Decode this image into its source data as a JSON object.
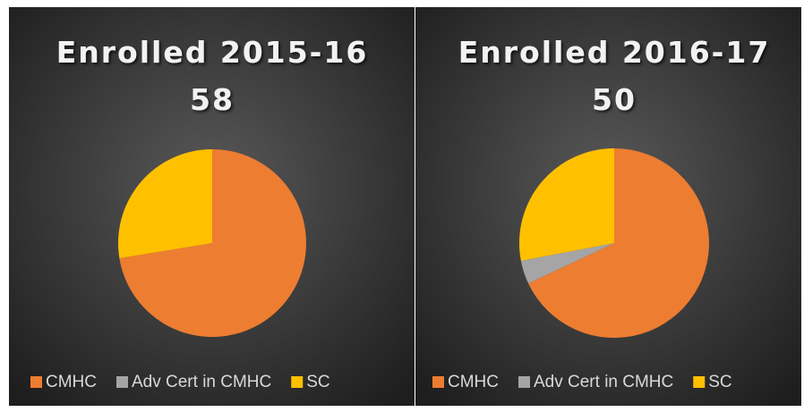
{
  "chart_data": [
    {
      "type": "pie",
      "title": "Enrolled 2015-16",
      "subtitle": "58",
      "categories": [
        "CMHC",
        "Adv Cert in CMHC",
        "SC"
      ],
      "values": [
        42,
        0,
        16
      ],
      "colors": [
        "#ed7d31",
        "#a5a5a5",
        "#ffc000"
      ]
    },
    {
      "type": "pie",
      "title": "Enrolled 2016-17",
      "subtitle": "50",
      "categories": [
        "CMHC",
        "Adv Cert in CMHC",
        "SC"
      ],
      "values": [
        34,
        2,
        14
      ],
      "colors": [
        "#ed7d31",
        "#a5a5a5",
        "#ffc000"
      ]
    }
  ]
}
